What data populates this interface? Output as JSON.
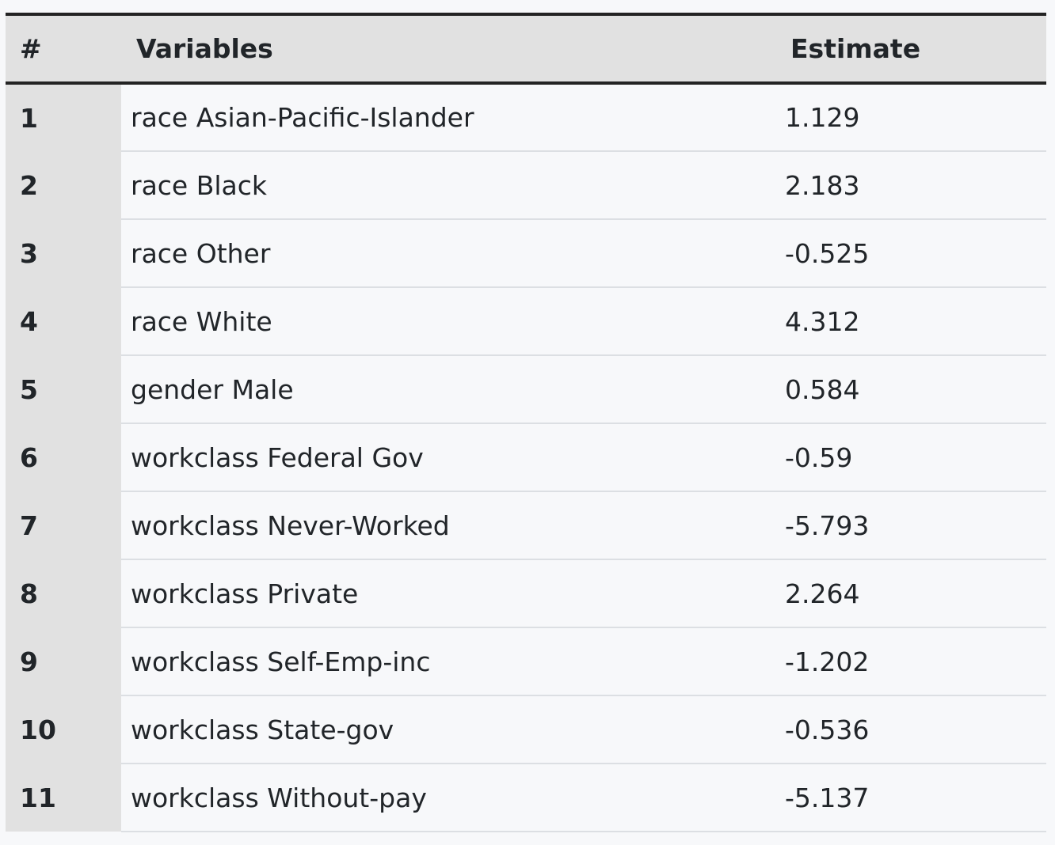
{
  "table": {
    "headers": {
      "index": "#",
      "variable": "Variables",
      "estimate": "Estimate"
    },
    "rows": [
      {
        "index": "1",
        "variable": "race Asian-Pacific-Islander",
        "estimate": "1.129"
      },
      {
        "index": "2",
        "variable": "race Black",
        "estimate": "2.183"
      },
      {
        "index": "3",
        "variable": "race Other",
        "estimate": "-0.525"
      },
      {
        "index": "4",
        "variable": "race White",
        "estimate": "4.312"
      },
      {
        "index": "5",
        "variable": "gender Male",
        "estimate": "0.584"
      },
      {
        "index": "6",
        "variable": "workclass Federal Gov",
        "estimate": "-0.59"
      },
      {
        "index": "7",
        "variable": "workclass Never-Worked",
        "estimate": "-5.793"
      },
      {
        "index": "8",
        "variable": "workclass Private",
        "estimate": "2.264"
      },
      {
        "index": "9",
        "variable": "workclass Self-Emp-inc",
        "estimate": "-1.202"
      },
      {
        "index": "10",
        "variable": "workclass State-gov",
        "estimate": "-0.536"
      },
      {
        "index": "11",
        "variable": "workclass Without-pay",
        "estimate": "-5.137"
      }
    ]
  },
  "colors": {
    "header_bg": "#e1e1e1",
    "index_col_bg": "#e1e1e1",
    "body_bg": "#f7f8fa",
    "rule": "#232323",
    "row_divider": "#dcdfe3",
    "text": "#212529"
  }
}
